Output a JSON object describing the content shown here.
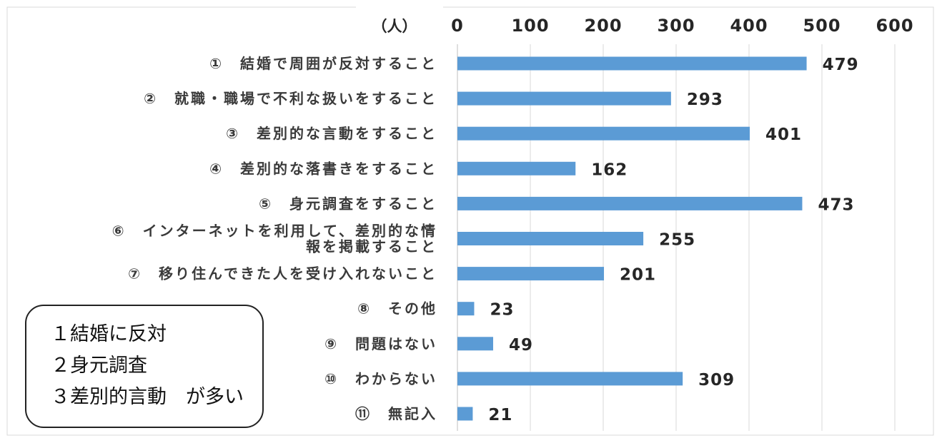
{
  "chart_data": {
    "type": "bar",
    "orientation": "horizontal",
    "unit_label": "（人）",
    "xlim": [
      0,
      600
    ],
    "x_ticks": [
      0,
      100,
      200,
      300,
      400,
      500,
      600
    ],
    "x_axis_position": "top",
    "grid": true,
    "categories": [
      [
        "①　結婚で周囲が反対すること"
      ],
      [
        "②　就職・職場で不利な扱いをすること"
      ],
      [
        "③　差別的な言動をすること"
      ],
      [
        "④　差別的な落書きをすること"
      ],
      [
        "⑤　身元調査をすること"
      ],
      [
        "⑥　インターネットを利用して、差別的な情",
        "報を掲載すること"
      ],
      [
        "⑦　移り住んできた人を受け入れないこと"
      ],
      [
        "⑧　その他"
      ],
      [
        "⑨　問題はない"
      ],
      [
        "⑩　わからない"
      ],
      [
        "⑪　無記入"
      ]
    ],
    "values": [
      479,
      293,
      401,
      162,
      473,
      255,
      201,
      23,
      49,
      309,
      21
    ],
    "bar_color": "#5b9bd5"
  },
  "annotation": {
    "lines": [
      "１結婚に反対",
      "２身元調査",
      "３差別的言動　が多い"
    ]
  }
}
